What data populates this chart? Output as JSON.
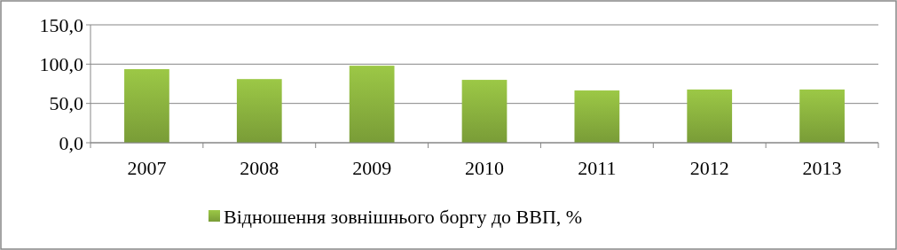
{
  "chart_data": {
    "type": "bar",
    "categories": [
      "2007",
      "2008",
      "2009",
      "2010",
      "2011",
      "2012",
      "2013"
    ],
    "series": [
      {
        "name": "Відношення зовнішнього боргу до ВВП, %",
        "color": "#8cb43f",
        "values": [
          93.6,
          81,
          98,
          80,
          66.5,
          67.7,
          67.7
        ]
      }
    ],
    "ylim": [
      0,
      150
    ],
    "yticks": [
      {
        "value": 0,
        "label": "0,0"
      },
      {
        "value": 50,
        "label": "50,0"
      },
      {
        "value": 100,
        "label": "100,0"
      },
      {
        "value": 150,
        "label": "150,0"
      }
    ],
    "grid": "y",
    "legend": "bottom"
  }
}
